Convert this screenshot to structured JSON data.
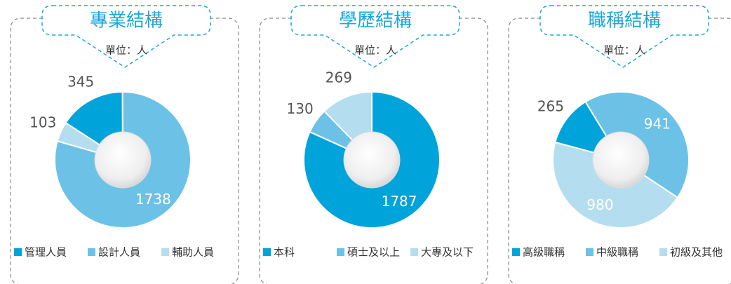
{
  "chart_data": [
    {
      "type": "pie",
      "title": "專業結構",
      "subtitle": "單位：人",
      "categories": [
        "管理人員",
        "設計人員",
        "輔助人員"
      ],
      "values": [
        345,
        1738,
        103
      ],
      "colors": [
        "#00a3da",
        "#6cc1e7",
        "#b5ddf0"
      ]
    },
    {
      "type": "pie",
      "title": "學歷結構",
      "subtitle": "單位：人",
      "categories": [
        "本科",
        "碩士及以上",
        "大專及以下"
      ],
      "values": [
        1787,
        130,
        269
      ],
      "colors": [
        "#00a3da",
        "#6cc1e7",
        "#b5ddf0"
      ]
    },
    {
      "type": "pie",
      "title": "職稱結構",
      "subtitle": "單位：人",
      "categories": [
        "高級職稱",
        "中級職稱",
        "初級及其他"
      ],
      "values": [
        265,
        941,
        980
      ],
      "colors": [
        "#00a3da",
        "#6cc1e7",
        "#b5ddf0"
      ]
    }
  ]
}
